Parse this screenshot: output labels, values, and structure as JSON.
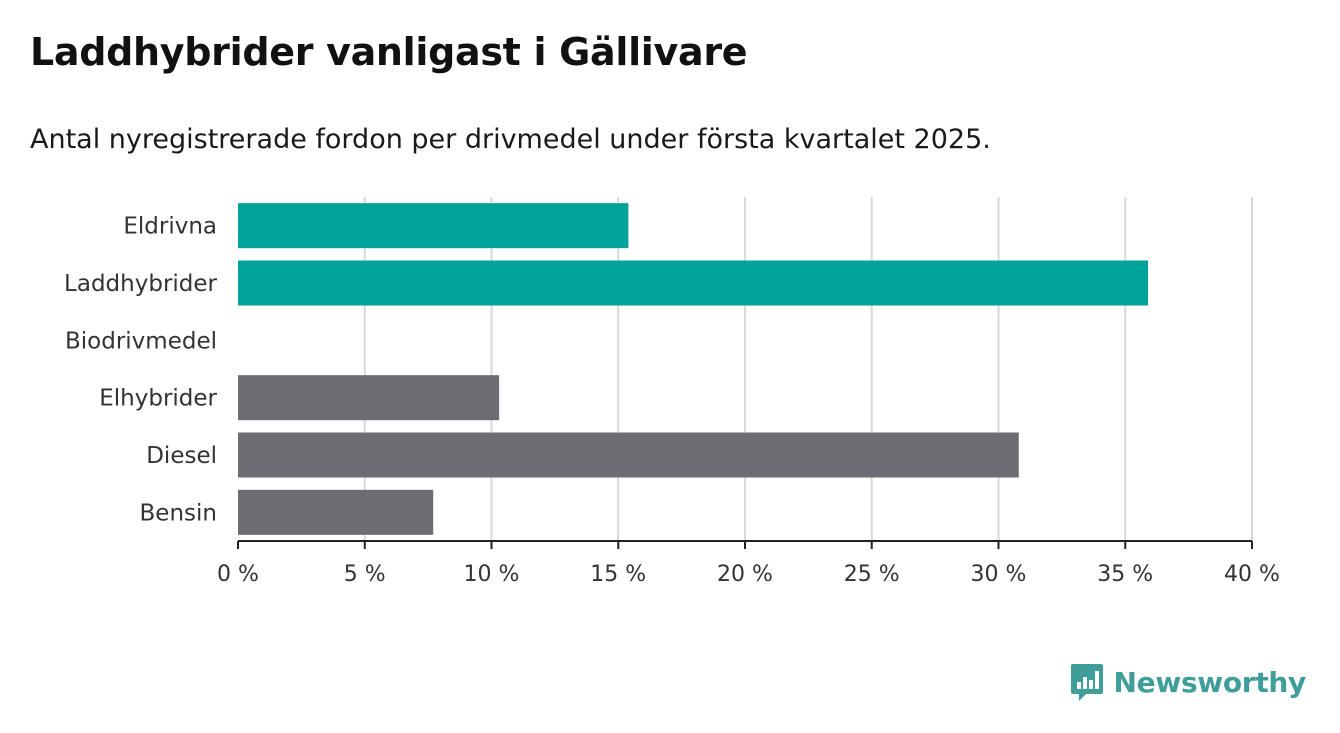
{
  "header": {
    "title": "Laddhybrider vanligast i Gällivare",
    "subtitle": "Antal nyregistrerade fordon per drivmedel under första kvartalet 2025."
  },
  "brand": {
    "name": "Newsworthy",
    "logo_icon": "bar-chart-speech-bubble-icon",
    "color": "#3f9e9a"
  },
  "chart_data": {
    "type": "bar",
    "orientation": "horizontal",
    "categories": [
      "Eldrivna",
      "Laddhybrider",
      "Biodrivmedel",
      "Elhybrider",
      "Diesel",
      "Bensin"
    ],
    "values": [
      15.4,
      35.9,
      0,
      10.3,
      30.8,
      7.7
    ],
    "colors": [
      "#00a39a",
      "#00a39a",
      "#00a39a",
      "#6e6d73",
      "#6e6d73",
      "#6e6d73"
    ],
    "xlim": [
      0,
      40
    ],
    "xticks": [
      0,
      5,
      10,
      15,
      20,
      25,
      30,
      35,
      40
    ],
    "xtick_labels": [
      "0 %",
      "5 %",
      "10 %",
      "15 %",
      "20 %",
      "25 %",
      "30 %",
      "35 %",
      "40 %"
    ],
    "grid": true,
    "unit": "%"
  }
}
